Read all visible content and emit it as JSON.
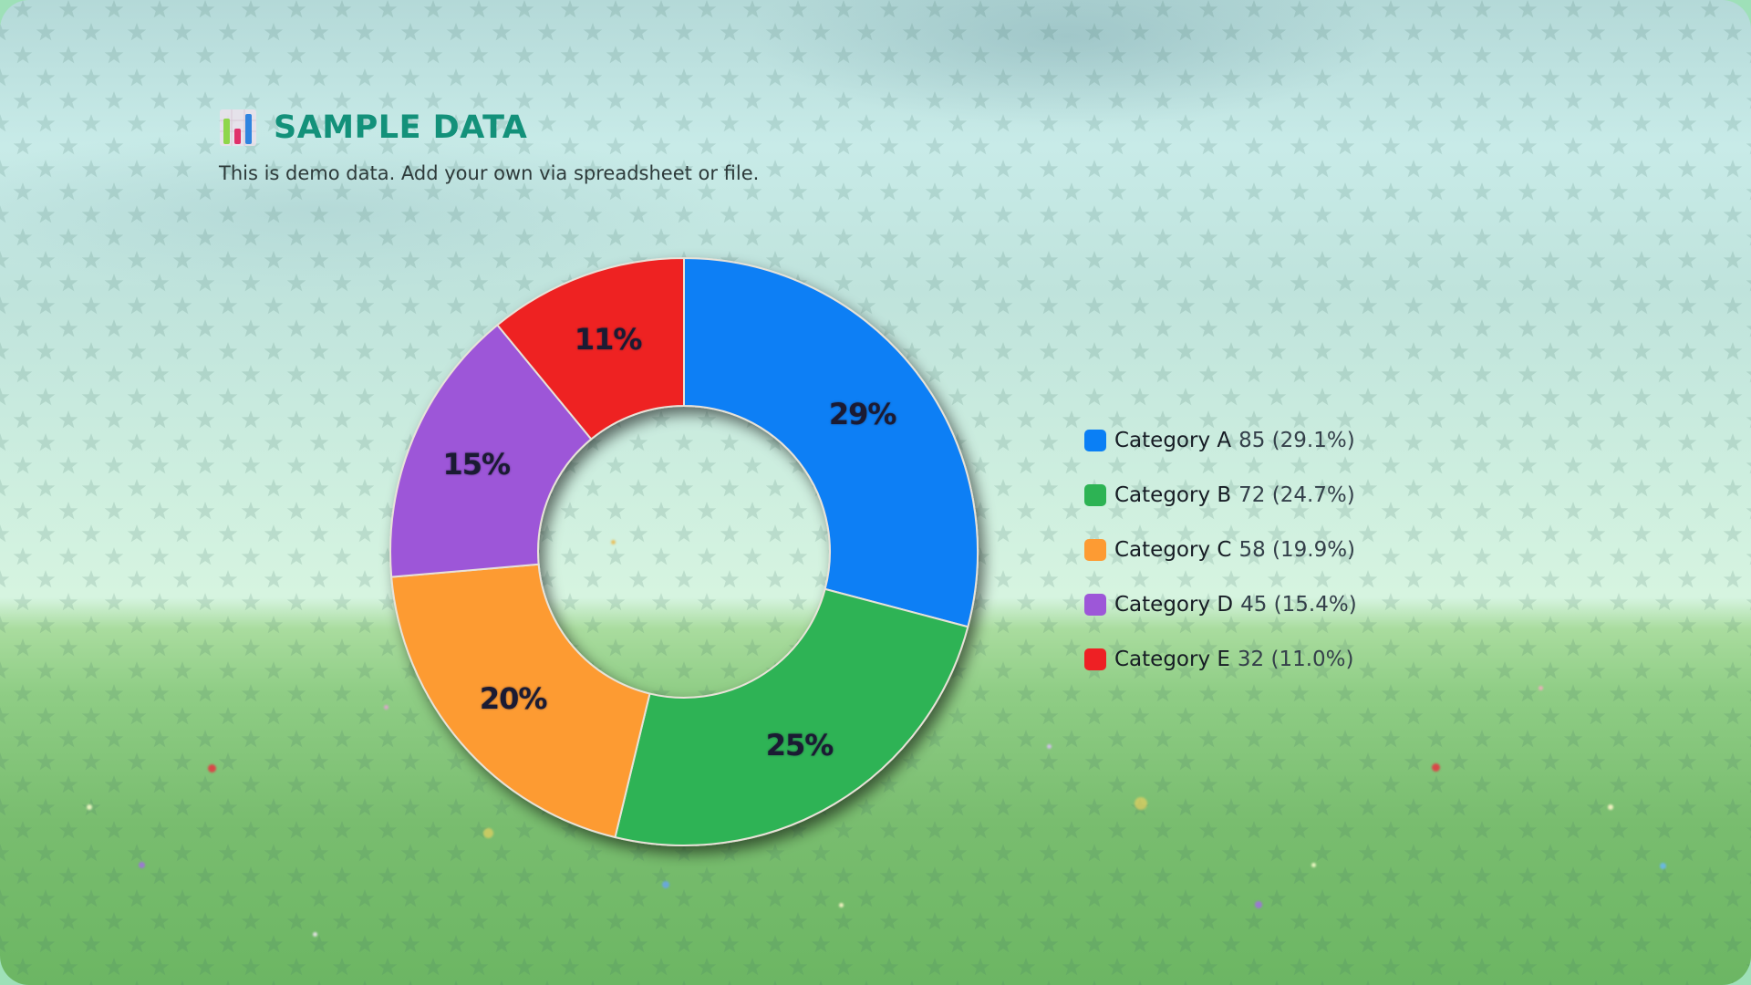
{
  "header": {
    "icon": "bar-chart-icon",
    "title": "SAMPLE DATA",
    "subtitle": "This is demo data. Add your own via spreadsheet or file."
  },
  "legend": {
    "items": [
      {
        "name": "Category A",
        "value_text": "85 (29.1%)",
        "color": "#0a7ff5"
      },
      {
        "name": "Category B",
        "value_text": "72 (24.7%)",
        "color": "#2db354"
      },
      {
        "name": "Category C",
        "value_text": "58 (19.9%)",
        "color": "#fd9b33"
      },
      {
        "name": "Category D",
        "value_text": "45 (15.4%)",
        "color": "#9d57d8"
      },
      {
        "name": "Category E",
        "value_text": "32 (11.0%)",
        "color": "#ee2024"
      }
    ]
  },
  "slice_labels": [
    "29%",
    "25%",
    "20%",
    "15%",
    "11%"
  ],
  "chart_data": {
    "type": "pie",
    "variant": "donut",
    "title": "SAMPLE DATA",
    "subtitle": "This is demo data. Add your own via spreadsheet or file.",
    "categories": [
      "Category A",
      "Category B",
      "Category C",
      "Category D",
      "Category E"
    ],
    "values": [
      85,
      72,
      58,
      45,
      32
    ],
    "percentages": [
      29.1,
      24.7,
      19.9,
      15.4,
      11.0
    ],
    "slice_labels": [
      "29%",
      "25%",
      "20%",
      "15%",
      "11%"
    ],
    "colors": [
      "#0a7ff5",
      "#2db354",
      "#fd9b33",
      "#9d57d8",
      "#ee2024"
    ],
    "start_angle": "top, clockwise",
    "legend_position": "right"
  }
}
